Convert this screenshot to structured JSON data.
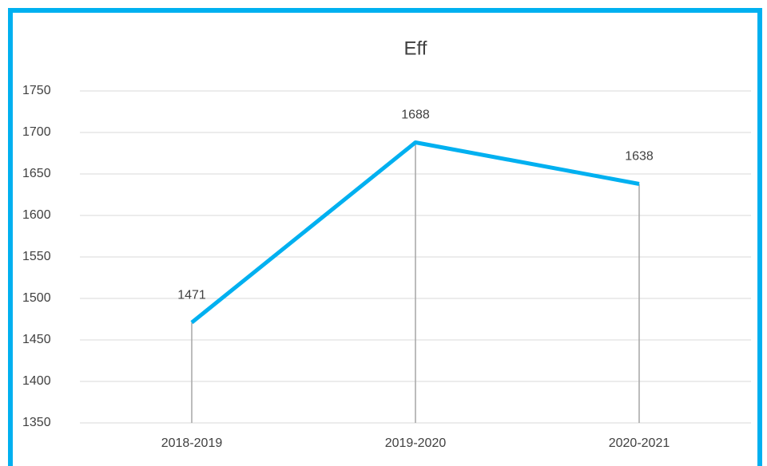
{
  "chart_data": {
    "type": "line",
    "title": "Eff",
    "categories": [
      "2018-2019",
      "2019-2020",
      "2020-2021"
    ],
    "values": [
      1471,
      1688,
      1638
    ],
    "color": "#00b0f0",
    "ylim": [
      1350,
      1750
    ],
    "yticks": [
      1350,
      1400,
      1450,
      1500,
      1550,
      1600,
      1650,
      1700,
      1750
    ],
    "grid": true,
    "drop_lines": true
  }
}
